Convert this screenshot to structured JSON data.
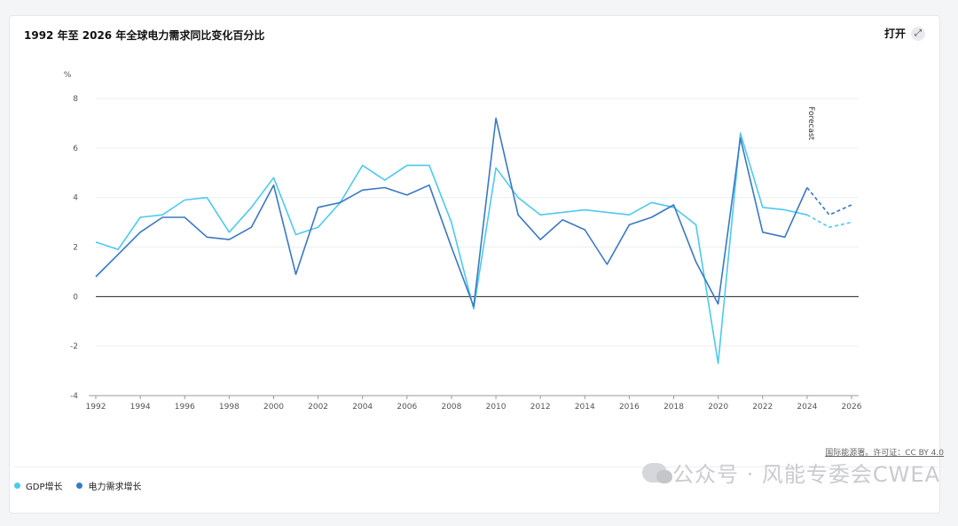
{
  "header": {
    "title": "1992 年至 2026 年全球电力需求同比变化百分比",
    "open_label": "打开",
    "expand_icon": "expand-icon"
  },
  "footer": {
    "source": "国际能源署。许可证：CC BY 4.0",
    "watermark": "公众号 · 风能专委会CWEA"
  },
  "chart_data": {
    "type": "line",
    "title": "1992 年至 2026 年全球电力需求同比变化百分比",
    "ylabel": "%",
    "xlabel": "",
    "ylim": [
      -4,
      8
    ],
    "xlim": [
      1992,
      2026
    ],
    "yticks": [
      -4,
      -2,
      0,
      2,
      4,
      6,
      8
    ],
    "xticks": [
      1992,
      1994,
      1996,
      1998,
      2000,
      2002,
      2004,
      2006,
      2008,
      2010,
      2012,
      2014,
      2016,
      2018,
      2020,
      2022,
      2024,
      2026
    ],
    "grid": true,
    "forecast_label": "Forecast",
    "forecast_start": 2024,
    "legend_position": "bottom-left",
    "x": [
      1992,
      1993,
      1994,
      1995,
      1996,
      1997,
      1998,
      1999,
      2000,
      2001,
      2002,
      2003,
      2004,
      2005,
      2006,
      2007,
      2008,
      2009,
      2010,
      2011,
      2012,
      2013,
      2014,
      2015,
      2016,
      2017,
      2018,
      2019,
      2020,
      2021,
      2022,
      2023,
      2024,
      2025,
      2026
    ],
    "series": [
      {
        "name": "GDP增长",
        "color": "#4dc9f0",
        "values": [
          2.2,
          1.9,
          3.2,
          3.3,
          3.9,
          4.0,
          2.6,
          3.6,
          4.8,
          2.5,
          2.8,
          3.8,
          5.3,
          4.7,
          5.3,
          5.3,
          3.0,
          -0.5,
          5.2,
          4.0,
          3.3,
          3.4,
          3.5,
          3.4,
          3.3,
          3.8,
          3.6,
          2.9,
          -2.7,
          6.6,
          3.6,
          3.5,
          3.3,
          2.8,
          3.0
        ]
      },
      {
        "name": "电力需求增长",
        "color": "#3a78c2",
        "values": [
          0.8,
          1.7,
          2.6,
          3.2,
          3.2,
          2.4,
          2.3,
          2.8,
          4.5,
          0.9,
          3.6,
          3.8,
          4.3,
          4.4,
          4.1,
          4.5,
          2.0,
          -0.4,
          7.2,
          3.3,
          2.3,
          3.1,
          2.7,
          1.3,
          2.9,
          3.2,
          3.7,
          1.4,
          -0.3,
          6.4,
          2.6,
          2.4,
          4.4,
          3.3,
          3.7
        ]
      }
    ]
  }
}
